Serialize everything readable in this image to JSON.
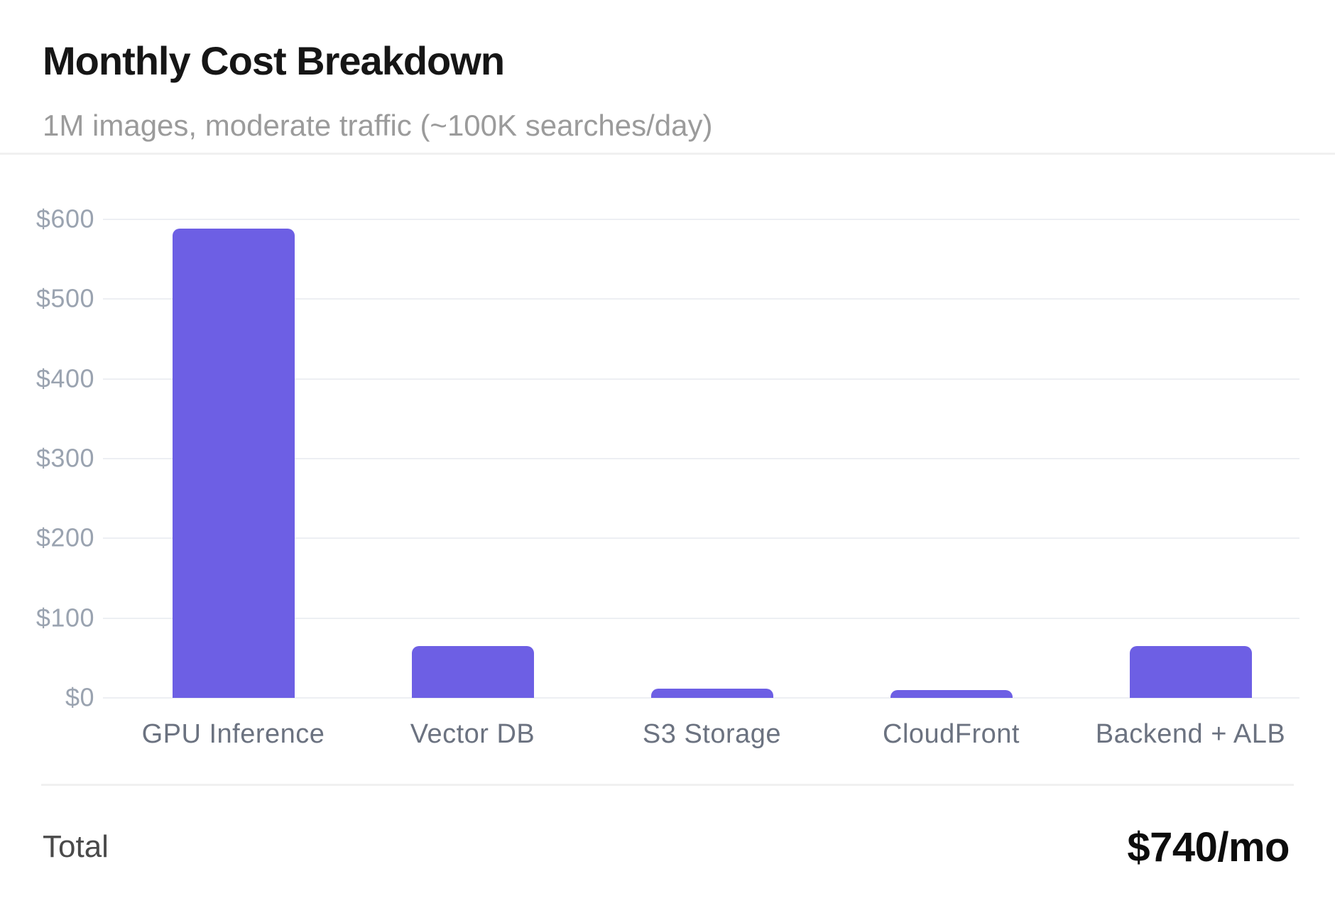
{
  "header": {
    "title": "Monthly Cost Breakdown",
    "subtitle": "1M images, moderate traffic (~100K searches/day)"
  },
  "chart_data": {
    "type": "bar",
    "categories": [
      "GPU Inference",
      "Vector DB",
      "S3 Storage",
      "CloudFront",
      "Backend + ALB"
    ],
    "values": [
      588,
      65,
      12,
      10,
      65
    ],
    "title": "Monthly Cost Breakdown",
    "xlabel": "",
    "ylabel": "",
    "ylim": [
      0,
      600
    ],
    "yticks": [
      0,
      100,
      200,
      300,
      400,
      500,
      600
    ],
    "ytick_labels": [
      "$0",
      "$100",
      "$200",
      "$300",
      "$400",
      "$500",
      "$600"
    ],
    "grid": true,
    "legend": false,
    "bar_color": "#6d5fe4",
    "gridline_color": "#edeff3",
    "currency_unit": "$ per month"
  },
  "footer": {
    "total_label": "Total",
    "total_value": "$740/mo"
  },
  "colors": {
    "accent": "#6d5fe4",
    "title_text": "#161616",
    "muted_text": "#9b9b9b",
    "axis_text": "#9aa3b0",
    "category_text": "#6b7280"
  }
}
